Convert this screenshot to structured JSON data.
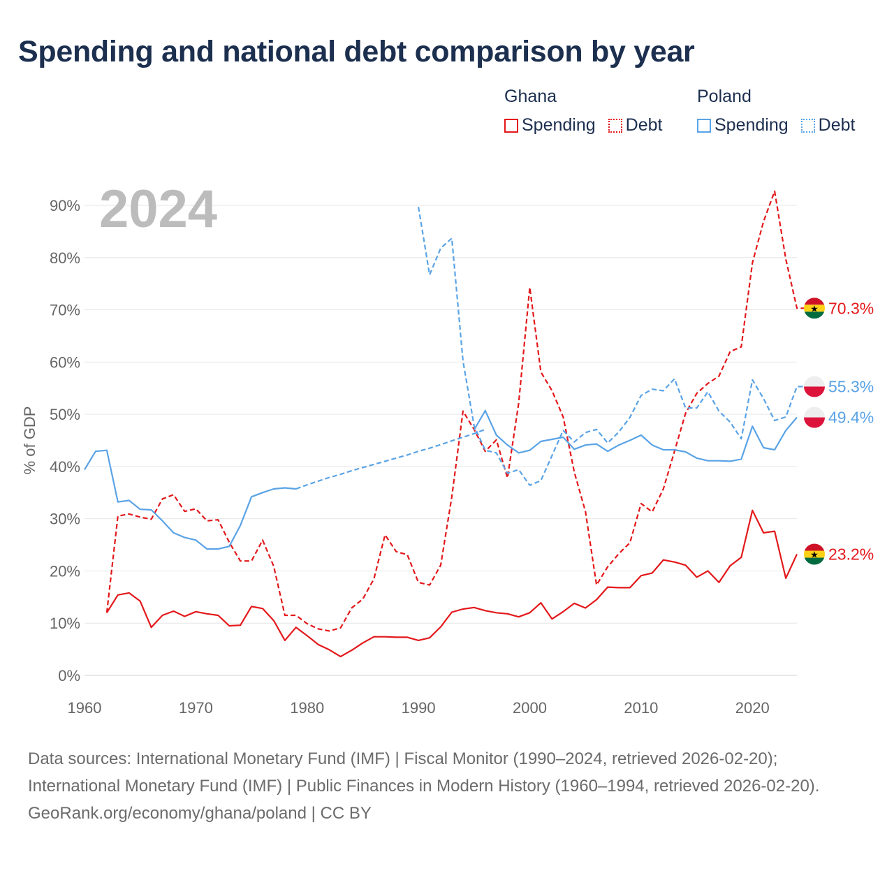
{
  "title": "Spending and national debt comparison by year",
  "legend": {
    "groups": [
      {
        "name": "Ghana",
        "items": [
          {
            "label": "Spending",
            "style": "solid",
            "color": "#e3181b"
          },
          {
            "label": "Debt",
            "style": "dashed",
            "color": "#e3181b"
          }
        ]
      },
      {
        "name": "Poland",
        "items": [
          {
            "label": "Spending",
            "style": "solid",
            "color": "#5aa3e6"
          },
          {
            "label": "Debt",
            "style": "dashed",
            "color": "#5aa3e6"
          }
        ]
      }
    ]
  },
  "footer": {
    "sources": "Data sources: International Monetary Fund (IMF) | Fiscal Monitor (1990–2024, retrieved 2026-02-20); International Monetary Fund (IMF) | Public Finances in Modern History (1960–1994, retrieved 2026-02-20).",
    "credit": "GeoRank.org/economy/ghana/poland | CC BY"
  },
  "chart_data": {
    "type": "line",
    "year_label": "2024",
    "ylabel": "% of GDP",
    "xlabel": "",
    "xlim": [
      1960,
      2024
    ],
    "ylim": [
      0,
      90
    ],
    "x_ticks": [
      1960,
      1970,
      1980,
      1990,
      2000,
      2010,
      2020
    ],
    "y_ticks": [
      0,
      10,
      20,
      30,
      40,
      50,
      60,
      70,
      80,
      90
    ],
    "y_tick_labels": [
      "0%",
      "10%",
      "20%",
      "30%",
      "40%",
      "50%",
      "60%",
      "70%",
      "80%",
      "90%"
    ],
    "grid": true,
    "series": [
      {
        "name": "Ghana Spending",
        "country": "Ghana",
        "measure": "Spending",
        "style": "solid",
        "color": "#e3181b",
        "start_year": 1962,
        "values": [
          12.0,
          15.4,
          15.8,
          14.2,
          9.2,
          11.5,
          12.3,
          11.3,
          12.2,
          11.8,
          11.5,
          9.5,
          9.6,
          13.2,
          12.8,
          10.5,
          6.7,
          9.2,
          7.6,
          5.9,
          4.9,
          3.6,
          4.8,
          6.2,
          7.4,
          7.4,
          7.3,
          7.3,
          6.7,
          7.2,
          9.3,
          12.1,
          12.7,
          13.0,
          12.4,
          12.0,
          11.8,
          11.2,
          12.0,
          13.9,
          10.8,
          12.2,
          13.8,
          12.9,
          14.5,
          16.9,
          16.8,
          16.8,
          19.1,
          19.6,
          22.1,
          21.7,
          21.1,
          18.8,
          20.0,
          17.8,
          21.0,
          22.6,
          31.6,
          27.3,
          27.6,
          18.6,
          23.2
        ]
      },
      {
        "name": "Ghana Debt",
        "country": "Ghana",
        "measure": "Debt",
        "style": "dashed",
        "color": "#e3181b",
        "start_year": 1962,
        "values": [
          12.0,
          30.5,
          30.9,
          30.3,
          29.9,
          33.8,
          34.6,
          31.4,
          31.9,
          29.6,
          29.8,
          25.5,
          21.9,
          21.9,
          25.9,
          20.9,
          11.5,
          11.5,
          9.9,
          8.9,
          8.5,
          9.1,
          12.9,
          14.6,
          18.5,
          26.9,
          23.7,
          23.1,
          17.8,
          17.3,
          21.1,
          34.2,
          50.6,
          47.1,
          42.9,
          45.1,
          37.8,
          52.1,
          74.3,
          58.1,
          54.5,
          49.5,
          38.9,
          31.4,
          17.3,
          20.8,
          23.3,
          25.4,
          32.9,
          31.3,
          35.7,
          42.9,
          50.2,
          54.0,
          55.9,
          57.3,
          62.0,
          62.9,
          79.0,
          86.9,
          92.7,
          79.7,
          70.3,
          70.3
        ]
      },
      {
        "name": "Poland Spending",
        "country": "Poland",
        "measure": "Spending",
        "style": "solid",
        "color": "#5aa3e6",
        "start_year": 1960,
        "values": [
          39.4,
          42.9,
          43.1,
          33.2,
          33.5,
          31.8,
          31.7,
          29.6,
          27.3,
          26.4,
          25.9,
          24.2,
          24.2,
          24.7,
          28.7,
          34.2,
          35.0,
          35.7,
          35.9,
          35.7
        ]
      },
      {
        "name": "Poland Spending (gap)",
        "country": "Poland",
        "measure": "Spending",
        "style": "dashed",
        "color": "#5aa3e6",
        "start_year": 1979,
        "values": [
          35.7,
          36.5,
          37.2,
          37.9,
          38.5,
          39.2,
          39.8,
          40.4,
          41.0,
          41.6,
          42.2,
          42.9,
          43.5,
          44.2,
          44.9,
          45.6,
          46.3,
          47.1
        ]
      },
      {
        "name": "Poland Spending (recent)",
        "country": "Poland",
        "measure": "Spending",
        "style": "solid",
        "color": "#5aa3e6",
        "start_year": 1995,
        "values": [
          47.0,
          50.7,
          46.0,
          44.1,
          42.6,
          43.1,
          44.8,
          45.2,
          45.6,
          43.3,
          44.1,
          44.3,
          42.9,
          44.1,
          45.0,
          46.0,
          44.1,
          43.2,
          43.2,
          42.8,
          41.6,
          41.1,
          41.1,
          41.0,
          41.4,
          47.7,
          43.6,
          43.2,
          46.9,
          49.4
        ]
      },
      {
        "name": "Poland Debt",
        "country": "Poland",
        "measure": "Debt",
        "style": "dashed",
        "color": "#5aa3e6",
        "start_year": 1990,
        "values": [
          89.7,
          76.7,
          81.8,
          83.7,
          60.2,
          47.8,
          43.1,
          42.6,
          38.7,
          39.4,
          36.4,
          37.3,
          42.1,
          46.9,
          44.7,
          46.5,
          47.1,
          44.5,
          46.6,
          49.4,
          53.6,
          54.8,
          54.5,
          56.8,
          51.2,
          51.2,
          54.3,
          50.6,
          48.5,
          45.3,
          56.6,
          53.0,
          48.8,
          49.5,
          55.3,
          55.3
        ]
      }
    ],
    "end_labels": [
      {
        "country": "Ghana",
        "text": "70.3%",
        "value": 70.3,
        "color": "#e3181b",
        "flag": "ghana-flag"
      },
      {
        "country": "Poland",
        "text": "55.3%",
        "value": 55.3,
        "color": "#5aa3e6",
        "flag": "poland-flag"
      },
      {
        "country": "Poland",
        "text": "49.4%",
        "value": 49.4,
        "color": "#5aa3e6",
        "flag": "poland-flag"
      },
      {
        "country": "Ghana",
        "text": "23.2%",
        "value": 23.2,
        "color": "#e3181b",
        "flag": "ghana-flag"
      }
    ]
  }
}
